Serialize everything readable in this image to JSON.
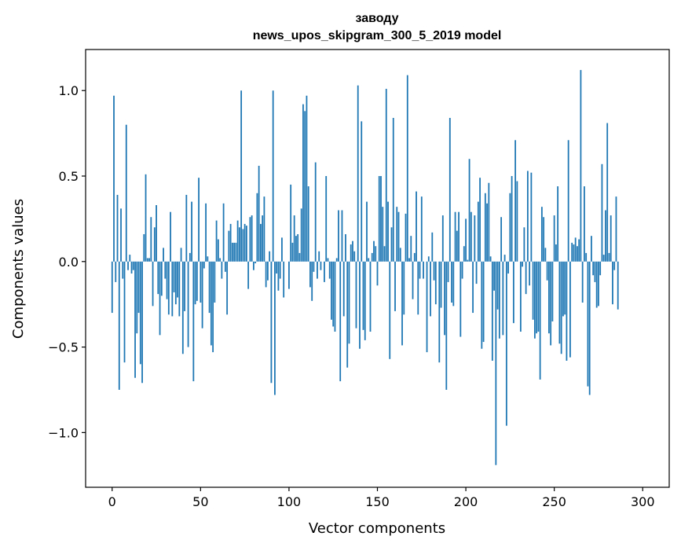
{
  "chart_data": {
    "type": "bar",
    "title": "заводу",
    "subtitle": "news_upos_skipgram_300_5_2019 model",
    "xlabel": "Vector components",
    "ylabel": "Components values",
    "xlim": [
      -15,
      315
    ],
    "ylim": [
      -1.32,
      1.24
    ],
    "xticks": [
      0,
      50,
      100,
      150,
      200,
      250,
      300
    ],
    "xtick_labels": [
      "0",
      "50",
      "100",
      "150",
      "200",
      "250",
      "300"
    ],
    "yticks": [
      -1.0,
      -0.5,
      0.0,
      0.5,
      1.0
    ],
    "ytick_labels": [
      "−1.0",
      "−0.5",
      "0.0",
      "0.5",
      "1.0"
    ],
    "bar_color": "#1f77b4",
    "values": [
      -0.3,
      0.97,
      -0.12,
      0.39,
      -0.75,
      0.31,
      -0.1,
      -0.59,
      0.8,
      -0.05,
      0.04,
      -0.07,
      -0.05,
      -0.68,
      -0.42,
      -0.3,
      -0.6,
      -0.71,
      0.16,
      0.51,
      0.02,
      0.02,
      0.26,
      -0.26,
      0.2,
      0.33,
      -0.19,
      -0.43,
      -0.2,
      0.08,
      -0.1,
      -0.22,
      -0.31,
      0.29,
      -0.32,
      -0.18,
      -0.25,
      -0.21,
      -0.32,
      0.08,
      -0.54,
      -0.29,
      0.39,
      -0.5,
      0.05,
      0.35,
      -0.7,
      -0.25,
      -0.23,
      0.49,
      -0.24,
      -0.39,
      -0.04,
      0.34,
      0.03,
      -0.3,
      -0.49,
      -0.53,
      -0.24,
      0.24,
      0.13,
      0.02,
      -0.1,
      0.34,
      -0.06,
      -0.31,
      0.18,
      0.22,
      0.11,
      0.11,
      0.11,
      0.24,
      0.2,
      1.0,
      0.19,
      0.22,
      0.21,
      -0.16,
      0.26,
      0.27,
      -0.05,
      -0.01,
      0.4,
      0.56,
      0.22,
      0.27,
      0.38,
      -0.15,
      -0.11,
      0.06,
      -0.71,
      1.0,
      -0.78,
      -0.07,
      -0.17,
      -0.1,
      0.14,
      -0.21,
      0.0,
      0.0,
      -0.16,
      0.45,
      0.11,
      0.27,
      0.15,
      0.16,
      0.05,
      0.31,
      0.92,
      0.88,
      0.97,
      0.44,
      -0.15,
      -0.23,
      -0.06,
      0.58,
      -0.1,
      0.06,
      -0.05,
      0.0,
      -0.12,
      0.5,
      0.02,
      -0.1,
      -0.34,
      -0.38,
      -0.41,
      0.02,
      0.3,
      -0.7,
      0.3,
      -0.32,
      0.16,
      -0.62,
      -0.48,
      0.1,
      0.12,
      0.06,
      -0.39,
      1.03,
      -0.51,
      0.82,
      -0.4,
      -0.46,
      0.35,
      0.02,
      -0.41,
      0.05,
      0.12,
      0.09,
      -0.14,
      0.5,
      0.5,
      0.32,
      0.09,
      1.01,
      0.35,
      -0.57,
      0.2,
      0.84,
      -0.29,
      0.32,
      0.29,
      0.08,
      -0.49,
      -0.31,
      0.28,
      1.09,
      0.02,
      0.15,
      -0.22,
      0.05,
      0.41,
      -0.31,
      -0.1,
      0.38,
      -0.1,
      0.0,
      -0.53,
      0.03,
      -0.32,
      0.17,
      -0.11,
      -0.25,
      0.0,
      -0.59,
      -0.27,
      0.27,
      -0.43,
      -0.75,
      -0.12,
      0.84,
      -0.24,
      -0.26,
      0.29,
      0.18,
      0.29,
      -0.44,
      -0.1,
      0.09,
      0.25,
      0.01,
      0.6,
      0.29,
      -0.3,
      0.27,
      -0.13,
      0.35,
      0.49,
      -0.51,
      -0.47,
      0.4,
      0.34,
      0.46,
      0.03,
      -0.58,
      -0.17,
      -1.19,
      -0.28,
      -0.45,
      0.26,
      -0.43,
      0.04,
      -0.96,
      -0.07,
      0.4,
      0.5,
      -0.36,
      0.71,
      0.47,
      0.0,
      -0.41,
      -0.03,
      0.2,
      -0.19,
      0.53,
      -0.14,
      0.52,
      -0.34,
      -0.45,
      -0.42,
      -0.41,
      -0.69,
      0.32,
      0.26,
      0.08,
      -0.11,
      -0.42,
      -0.49,
      -0.35,
      0.27,
      0.1,
      0.44,
      -0.48,
      -0.54,
      -0.32,
      -0.31,
      -0.58,
      0.71,
      -0.56,
      0.11,
      0.1,
      0.14,
      0.09,
      0.13,
      1.12,
      -0.24,
      0.44,
      0.05,
      -0.73,
      -0.78,
      0.15,
      -0.08,
      -0.12,
      -0.27,
      -0.26,
      -0.08,
      0.57,
      0.04,
      0.3,
      0.81,
      0.05,
      0.27,
      -0.25,
      -0.05,
      0.38,
      -0.28,
      0.0,
      0.0,
      0.0
    ]
  }
}
